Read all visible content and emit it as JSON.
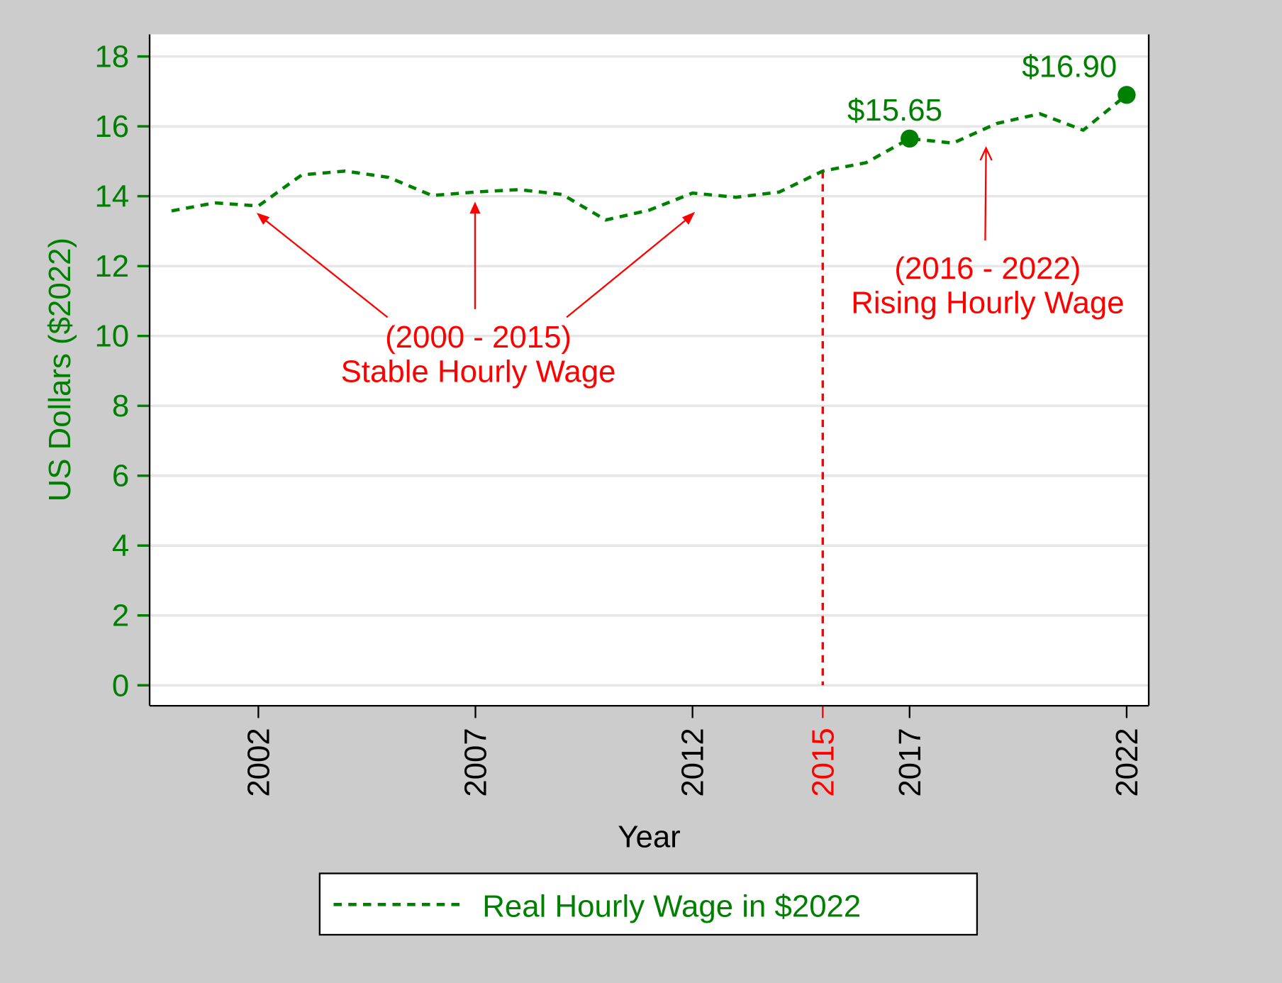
{
  "chart_data": {
    "type": "line",
    "xlabel": "Year",
    "ylabel": "US Dollars ($2022)",
    "xlim": [
      1999.5,
      2022.5
    ],
    "ylim": [
      0,
      18
    ],
    "yticks": [
      0,
      2,
      4,
      6,
      8,
      10,
      12,
      14,
      16,
      18
    ],
    "xticks": [
      2002,
      2007,
      2012,
      2015,
      2017,
      2022
    ],
    "highlight_xtick": 2015,
    "grid": true,
    "legend_position": "bottom",
    "series": [
      {
        "name": "Real Hourly Wage in $2022",
        "style": "dashed",
        "color": "#008000",
        "x": [
          2000,
          2001,
          2002,
          2003,
          2004,
          2005,
          2006,
          2007,
          2008,
          2009,
          2010,
          2011,
          2012,
          2013,
          2014,
          2015,
          2016,
          2017,
          2018,
          2019,
          2020,
          2021,
          2022
        ],
        "y": [
          13.58,
          13.81,
          13.72,
          14.61,
          14.72,
          14.54,
          14.02,
          14.12,
          14.19,
          14.05,
          13.32,
          13.6,
          14.09,
          13.97,
          14.12,
          14.72,
          14.96,
          15.65,
          15.52,
          16.08,
          16.36,
          15.89,
          16.9
        ]
      }
    ],
    "markers": [
      {
        "x": 2017,
        "y": 15.65,
        "label": "$15.65"
      },
      {
        "x": 2022,
        "y": 16.9,
        "label": "$16.90"
      }
    ],
    "vline": {
      "x": 2015,
      "color": "#ff0000",
      "style": "dashed"
    },
    "annotations": [
      {
        "line1": "(2000 - 2015)",
        "line2": "Stable Hourly Wage",
        "color": "#ff0000"
      },
      {
        "line1": "(2016 - 2022)",
        "line2": "Rising Hourly Wage",
        "color": "#ff0000"
      }
    ]
  },
  "colors": {
    "axis_text": "#008000",
    "annotation": "#ff0000",
    "background": "#cccccc"
  }
}
